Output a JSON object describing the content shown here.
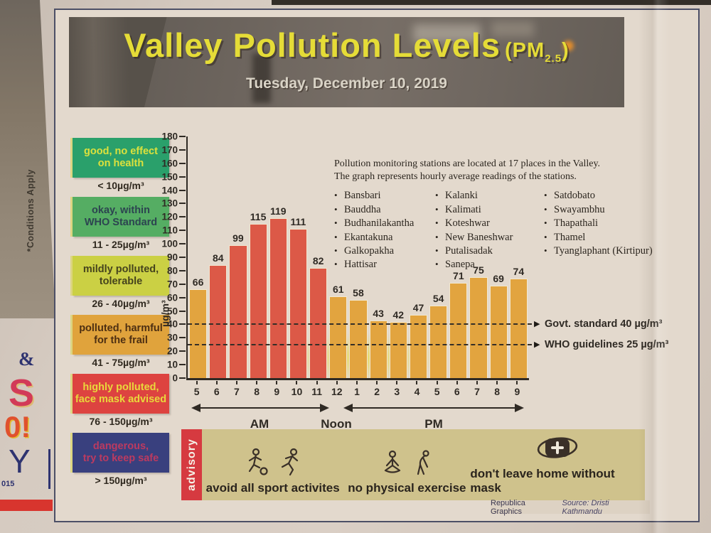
{
  "page": {
    "side_text": "*Conditions Apply",
    "ad_fragments": [
      "&",
      "S",
      "0!",
      "Y",
      "015"
    ]
  },
  "header": {
    "title": "Valley Pollution Levels",
    "unit_prefix": "(PM",
    "unit_sub": "2.5",
    "unit_suffix": ")",
    "date": "Tuesday, December 10, 2019"
  },
  "legend": [
    {
      "label": "good, no effect\non health",
      "range": "< 10µg/m³",
      "bg": "#2aa06b",
      "fg": "#dde13c"
    },
    {
      "label": "okay, within\nWHO Standard",
      "range": "11 - 25µg/m³",
      "bg": "#55ad63",
      "fg": "#2c4450"
    },
    {
      "label": "mildly polluted,\ntolerable",
      "range": "26 - 40µg/m³",
      "bg": "#cbd044",
      "fg": "#45431d"
    },
    {
      "label": "polluted, harmful\nfor the frail",
      "range": "41 - 75µg/m³",
      "bg": "#e0a33c",
      "fg": "#4d2f12"
    },
    {
      "label": "highly polluted,\nface mask advised",
      "range": "76 - 150µg/m³",
      "bg": "#dd4340",
      "fg": "#e9d83b"
    },
    {
      "label": "dangerous,\ntry to keep safe",
      "range": "> 150µg/m³",
      "bg": "#39407e",
      "fg": "#bc3a60"
    }
  ],
  "colors": {
    "bar_moderate": "#e2a43f",
    "bar_high": "#dc5947",
    "advisory_bg": "#cfc28c",
    "advisory_tab": "#d63a40",
    "title_yellow": "#e5dc37"
  },
  "chart_data": {
    "type": "bar",
    "title": "Valley Pollution Levels (PM2.5) — hourly average readings",
    "ylabel": "µg/m³",
    "xlabel": "",
    "ylim": [
      0,
      180
    ],
    "ytick_step": 10,
    "grid": false,
    "categories": [
      "5",
      "6",
      "7",
      "8",
      "9",
      "10",
      "11",
      "12",
      "1",
      "2",
      "3",
      "4",
      "5",
      "6",
      "7",
      "8",
      "9"
    ],
    "values": [
      66,
      84,
      99,
      115,
      119,
      111,
      82,
      61,
      58,
      43,
      42,
      47,
      54,
      71,
      75,
      69,
      74
    ],
    "high_threshold": 76,
    "thresholds": [
      {
        "text": "Govt. standard 40 µg/m³",
        "value": 40
      },
      {
        "text": "WHO guidelines 25 µg/m³",
        "value": 25
      }
    ],
    "periods": {
      "am": "AM",
      "noon": "Noon",
      "pm": "PM"
    }
  },
  "stations": {
    "intro_line1": "Pollution monitoring stations are located at 17 places in the Valley.",
    "intro_line2": "The graph represents hourly average readings of the stations.",
    "columns": [
      [
        "Bansbari",
        "Bauddha",
        "Budhanilakantha",
        "Ekantakuna",
        "Galkopakha",
        "Hattisar"
      ],
      [
        "Kalanki",
        "Kalimati",
        "Koteshwar",
        "New Baneshwar",
        "Putalisadak",
        "Sanepa"
      ],
      [
        "Satdobato",
        "Swayambhu",
        "Thapathali",
        "Thamel",
        "Tyanglaphant (Kirtipur)"
      ]
    ]
  },
  "advisory": {
    "label": "advisory",
    "items": [
      {
        "icon": "sports-icon",
        "text": "avoid all sport activites"
      },
      {
        "icon": "exercise-icon",
        "text": "no physical exercise"
      },
      {
        "icon": "mask-icon",
        "text": "don't leave home without mask"
      }
    ]
  },
  "credit": {
    "publisher": "Republica Graphics",
    "source": "Source: Dristi Kathmandu"
  }
}
